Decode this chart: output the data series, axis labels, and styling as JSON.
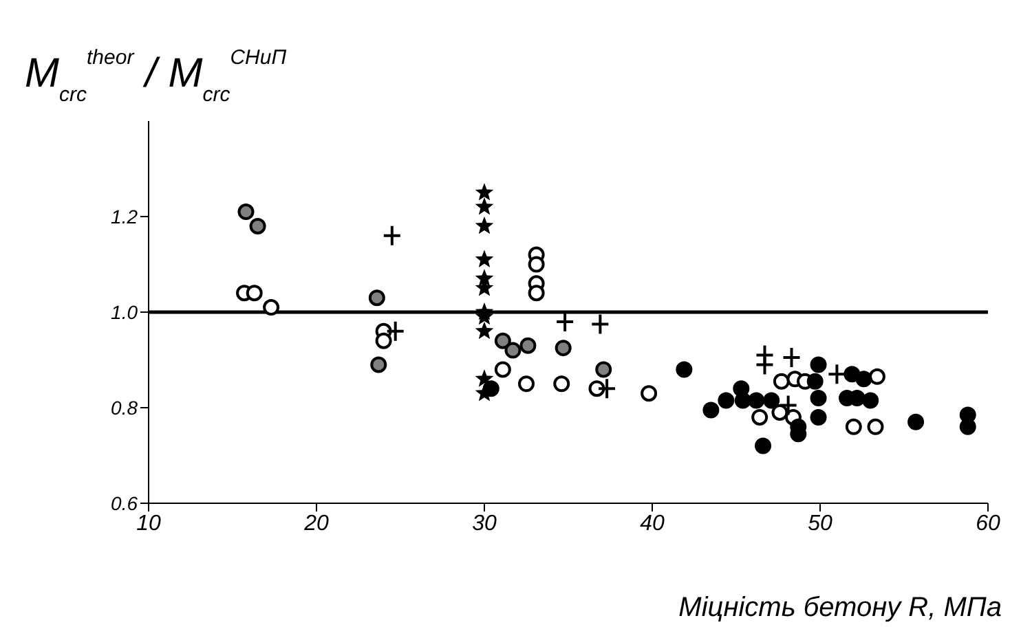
{
  "chart_data": {
    "type": "scatter",
    "ylabel": "M$_{crc}$$^{theor}$ / M$_{crc}$$^{СНиП}$",
    "xlabel": "Міцність  бетону  R, МПа",
    "xlim": [
      10,
      60
    ],
    "xticks": [
      10,
      20,
      30,
      40,
      50,
      60
    ],
    "ylim": [
      0.6,
      1.4
    ],
    "yticks": [
      {
        "value": 0.6,
        "label": "0.6"
      },
      {
        "value": 0.8,
        "label": "0.8"
      },
      {
        "value": 1.0,
        "label": "1.0"
      },
      {
        "value": 1.2,
        "label": "1.2"
      }
    ],
    "grid": false,
    "legend": false,
    "ref_lines": [
      {
        "axis": "y",
        "value": 1.0,
        "color": "#000000",
        "line_style": "solid"
      }
    ],
    "series": [
      {
        "color": "#ffffff",
        "marker": "circle",
        "x": [
          15.7,
          16.3,
          17.3,
          24,
          24,
          31.1,
          33.1,
          33.1,
          33.1,
          33.1,
          32.5,
          34.6,
          36.7,
          39.8,
          47.7,
          48.5,
          49.1,
          46.4,
          47.6,
          48.4,
          52,
          53.3,
          53.4
        ],
        "values": [
          1.04,
          1.04,
          1.01,
          0.96,
          0.94,
          0.88,
          1.12,
          1.1,
          1.06,
          1.04,
          0.85,
          0.85,
          0.84,
          0.83,
          0.855,
          0.86,
          0.855,
          0.78,
          0.79,
          0.78,
          0.76,
          0.76,
          0.865
        ]
      },
      {
        "color": "#808080",
        "marker": "circle",
        "x": [
          15.8,
          16.5,
          23.6,
          23.7,
          31.1,
          31.7,
          34.7,
          37.1,
          32.6
        ],
        "values": [
          1.21,
          1.18,
          1.03,
          0.89,
          0.94,
          0.92,
          0.925,
          0.88,
          0.93
        ]
      },
      {
        "color": "#000000",
        "marker": "circle",
        "x": [
          30.4,
          41.9,
          49.9,
          49.7,
          51.9,
          52.6,
          45.3,
          44.4,
          45.4,
          46.2,
          47.1,
          43.5,
          48.7,
          48.7,
          49.9,
          49.9,
          51.6,
          52.2,
          53,
          55.7,
          58.8,
          58.8,
          46.6
        ],
        "values": [
          0.84,
          0.88,
          0.89,
          0.855,
          0.87,
          0.86,
          0.84,
          0.815,
          0.815,
          0.815,
          0.815,
          0.795,
          0.76,
          0.745,
          0.78,
          0.82,
          0.82,
          0.82,
          0.815,
          0.77,
          0.785,
          0.76,
          0.72
        ]
      },
      {
        "color": "#000000",
        "marker": "cross",
        "x": [
          24.5,
          24.7,
          34.8,
          36.9,
          37.3,
          46.7,
          46.7,
          48.3,
          51,
          48.1
        ],
        "values": [
          1.16,
          0.96,
          0.98,
          0.975,
          0.84,
          0.91,
          0.89,
          0.905,
          0.87,
          0.805
        ]
      },
      {
        "color": "#000000",
        "marker": "star",
        "x": [
          30,
          30,
          30,
          30,
          30,
          30,
          30,
          30,
          30,
          30,
          30
        ],
        "values": [
          1.25,
          1.22,
          1.18,
          1.11,
          1.07,
          1.05,
          1.0,
          0.99,
          0.96,
          0.86,
          0.83
        ]
      }
    ]
  }
}
